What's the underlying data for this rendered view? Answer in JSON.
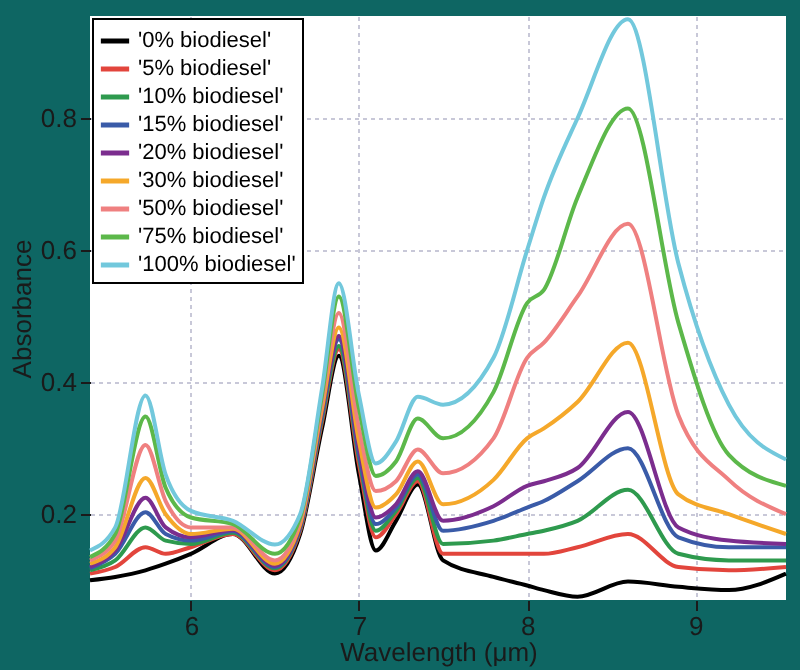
{
  "chart_data": {
    "type": "line",
    "xlabel": "Wavelength (μm)",
    "ylabel": "Absorbance",
    "x": [
      5.4,
      5.55,
      5.73,
      5.85,
      6.0,
      6.25,
      6.5,
      6.65,
      6.78,
      6.88,
      7.0,
      7.1,
      7.22,
      7.35,
      7.5,
      7.8,
      8.0,
      8.1,
      8.3,
      8.6,
      8.9,
      9.2,
      9.54
    ],
    "xlim": [
      5.4,
      9.54
    ],
    "xticks": [
      6,
      7,
      8,
      9
    ],
    "ylim": [
      0.07,
      0.955
    ],
    "yticks": [
      0.2,
      0.4,
      0.6,
      0.8
    ],
    "grid": true,
    "legend": "top left",
    "line_style": "solid",
    "marker": "none",
    "series": [
      {
        "name": "'0% biodiesel'",
        "color": "#000000",
        "values": [
          0.1,
          0.105,
          0.115,
          0.125,
          0.14,
          0.17,
          0.11,
          0.17,
          0.33,
          0.44,
          0.26,
          0.145,
          0.19,
          0.245,
          0.13,
          0.105,
          0.092,
          0.085,
          0.075,
          0.098,
          0.09,
          0.085,
          0.11
        ]
      },
      {
        "name": "'5% biodiesel'",
        "color": "#e2453c",
        "values": [
          0.11,
          0.12,
          0.15,
          0.14,
          0.15,
          0.17,
          0.115,
          0.175,
          0.34,
          0.45,
          0.275,
          0.165,
          0.2,
          0.25,
          0.14,
          0.14,
          0.14,
          0.14,
          0.15,
          0.17,
          0.12,
          0.115,
          0.12
        ]
      },
      {
        "name": "'10% biodiesel'",
        "color": "#2e9a4e",
        "values": [
          0.115,
          0.13,
          0.18,
          0.16,
          0.155,
          0.172,
          0.118,
          0.178,
          0.345,
          0.455,
          0.285,
          0.175,
          0.205,
          0.255,
          0.155,
          0.16,
          0.17,
          0.175,
          0.19,
          0.237,
          0.14,
          0.13,
          0.13
        ]
      },
      {
        "name": "'15% biodiesel'",
        "color": "#3a5ba8",
        "values": [
          0.118,
          0.14,
          0.203,
          0.17,
          0.16,
          0.174,
          0.12,
          0.18,
          0.35,
          0.465,
          0.29,
          0.185,
          0.21,
          0.26,
          0.175,
          0.19,
          0.21,
          0.22,
          0.25,
          0.3,
          0.165,
          0.15,
          0.15
        ]
      },
      {
        "name": "'20% biodiesel'",
        "color": "#7b2d8e",
        "values": [
          0.12,
          0.145,
          0.225,
          0.18,
          0.165,
          0.176,
          0.122,
          0.182,
          0.355,
          0.47,
          0.3,
          0.195,
          0.215,
          0.265,
          0.19,
          0.212,
          0.243,
          0.25,
          0.27,
          0.355,
          0.18,
          0.16,
          0.155
        ]
      },
      {
        "name": "'30% biodiesel'",
        "color": "#f5a82a",
        "values": [
          0.125,
          0.15,
          0.255,
          0.2,
          0.17,
          0.178,
          0.125,
          0.185,
          0.36,
          0.483,
          0.31,
          0.21,
          0.23,
          0.28,
          0.215,
          0.252,
          0.315,
          0.33,
          0.37,
          0.46,
          0.23,
          0.2,
          0.17
        ]
      },
      {
        "name": "'50% biodiesel'",
        "color": "#ef8080",
        "values": [
          0.13,
          0.16,
          0.305,
          0.22,
          0.18,
          0.18,
          0.13,
          0.19,
          0.37,
          0.505,
          0.33,
          0.235,
          0.25,
          0.298,
          0.262,
          0.315,
          0.437,
          0.46,
          0.53,
          0.64,
          0.35,
          0.252,
          0.2
        ]
      },
      {
        "name": "'75% biodiesel'",
        "color": "#5cb84a",
        "values": [
          0.135,
          0.17,
          0.348,
          0.24,
          0.195,
          0.185,
          0.14,
          0.195,
          0.38,
          0.53,
          0.36,
          0.258,
          0.28,
          0.345,
          0.315,
          0.385,
          0.52,
          0.54,
          0.68,
          0.815,
          0.49,
          0.29,
          0.243
        ]
      },
      {
        "name": "'100% biodiesel'",
        "color": "#72c8dc",
        "values": [
          0.145,
          0.18,
          0.38,
          0.26,
          0.205,
          0.19,
          0.154,
          0.2,
          0.39,
          0.55,
          0.38,
          0.277,
          0.31,
          0.378,
          0.366,
          0.437,
          0.6,
          0.68,
          0.8,
          0.95,
          0.58,
          0.366,
          0.283
        ]
      }
    ]
  }
}
